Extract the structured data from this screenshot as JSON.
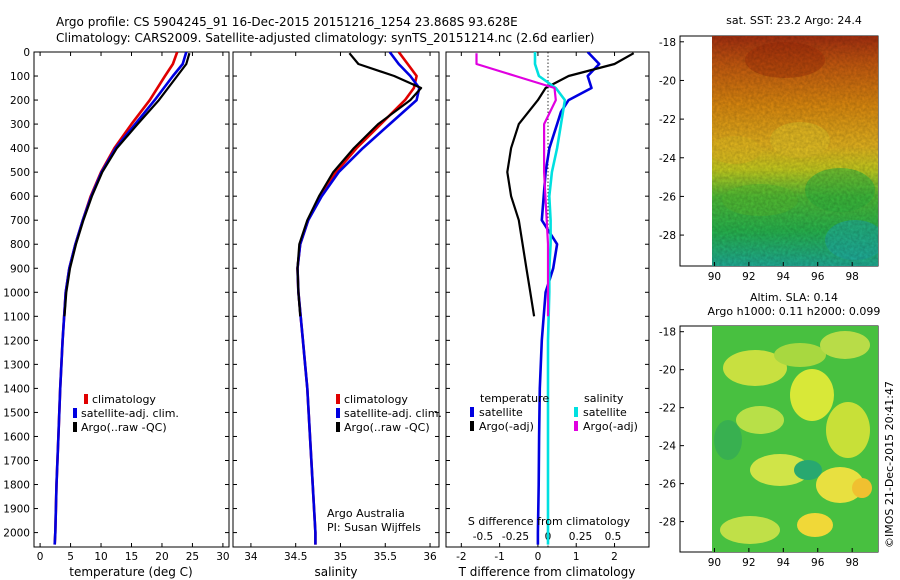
{
  "header": {
    "line1": "Argo profile: CS 5904245_91 16-Dec-2015 20151216_1254 23.868S 93.628E",
    "line2": "Climatology: CARS2009. Satellite-adjusted climatology: synTS_20151214.nc (2.6d earlier)"
  },
  "depth_axis": {
    "ticks": [
      "0",
      "100",
      "200",
      "300",
      "400",
      "500",
      "600",
      "700",
      "800",
      "900",
      "1000",
      "1100",
      "1200",
      "1300",
      "1400",
      "1500",
      "1600",
      "1700",
      "1800",
      "1900",
      "2000"
    ]
  },
  "colors": {
    "climatology": "#e00000",
    "satellite": "#0000e0",
    "argo": "#000000",
    "satellite_salinity": "#00e0e0",
    "argo_salinity": "#e000e0",
    "background": "#ffffff",
    "frame": "#000000"
  },
  "panels": {
    "temperature": {
      "xlabel": "temperature (deg C)",
      "xticks": [
        "0",
        "5",
        "10",
        "15",
        "20",
        "25",
        "30"
      ],
      "legend": [
        "climatology",
        "satellite-adj. clim.",
        "Argo(..raw -QC)"
      ]
    },
    "salinity": {
      "xlabel": "salinity",
      "xticks": [
        "34",
        "34.5",
        "35",
        "35.5",
        "36"
      ],
      "legend": [
        "climatology",
        "satellite-adj. clim.",
        "Argo(..raw -QC)"
      ],
      "credit1": "Argo Australia",
      "credit2": "PI: Susan Wijffels"
    },
    "difference": {
      "xlabel_bottom": "T difference from climatology",
      "xlabel_top": "S difference from climatology",
      "xticks_bottom": [
        "-2",
        "-1",
        "0",
        "1",
        "2"
      ],
      "xticks_top": [
        "-0.5",
        "-0.25",
        "0",
        "0.25",
        "0.5"
      ],
      "legend_t_title": "temperature",
      "legend_s_title": "salinity",
      "legend_t": [
        "satellite",
        "Argo(-adj)"
      ],
      "legend_s": [
        "satellite",
        "Argo(-adj)"
      ]
    }
  },
  "maps": {
    "sst": {
      "title": "sat. SST: 23.2 Argo: 24.4",
      "yticks": [
        "-18",
        "-20",
        "-22",
        "-24",
        "-26",
        "-28"
      ],
      "xticks": [
        "90",
        "92",
        "94",
        "96",
        "98"
      ]
    },
    "sla": {
      "title1": "Altim. SLA: 0.14",
      "title2": "Argo h1000: 0.11 h2000: 0.099",
      "yticks": [
        "-18",
        "-20",
        "-22",
        "-24",
        "-26",
        "-28"
      ],
      "xticks": [
        "90",
        "92",
        "94",
        "96",
        "98"
      ]
    },
    "stamp": "©IMOS 21-Dec-2015 20:41:47"
  },
  "chart_data": [
    {
      "type": "line",
      "xlabel": "temperature (deg C)",
      "ylabel": "",
      "xlim": [
        -1,
        31
      ],
      "ylim": [
        2060,
        0
      ],
      "series": [
        {
          "name": "climatology",
          "depth": [
            0,
            50,
            100,
            200,
            300,
            400,
            500,
            600,
            700,
            800,
            900,
            1000,
            1200,
            1400,
            1600,
            1800,
            2000,
            2050
          ],
          "values": [
            22.5,
            21.8,
            20.5,
            18.0,
            15.0,
            12.2,
            10.0,
            8.3,
            7.0,
            5.8,
            4.8,
            4.2,
            3.7,
            3.3,
            3.0,
            2.7,
            2.5,
            2.4
          ]
        },
        {
          "name": "satellite-adj. clim.",
          "depth": [
            0,
            50,
            100,
            200,
            300,
            400,
            500,
            600,
            700,
            800,
            900,
            1000,
            1200,
            1400,
            1600,
            1800,
            2000,
            2050
          ],
          "values": [
            24.0,
            23.4,
            21.8,
            18.8,
            15.6,
            12.4,
            10.1,
            8.4,
            7.0,
            5.8,
            4.8,
            4.2,
            3.7,
            3.3,
            3.0,
            2.7,
            2.5,
            2.4
          ]
        },
        {
          "name": "Argo(..raw -QC)",
          "depth": [
            5,
            50,
            100,
            200,
            300,
            400,
            500,
            600,
            700,
            800,
            900,
            1000,
            1100
          ],
          "values": [
            24.5,
            24.0,
            22.5,
            19.5,
            16.0,
            12.6,
            10.2,
            8.5,
            7.1,
            5.9,
            4.9,
            4.3,
            4.0
          ]
        }
      ]
    },
    {
      "type": "line",
      "xlabel": "salinity",
      "ylabel": "",
      "xlim": [
        33.8,
        36.1
      ],
      "ylim": [
        2060,
        0
      ],
      "series": [
        {
          "name": "climatology",
          "depth": [
            0,
            50,
            100,
            150,
            200,
            300,
            400,
            500,
            600,
            700,
            800,
            900,
            1000,
            1200,
            1400,
            1600,
            1800,
            2000,
            2050
          ],
          "values": [
            35.65,
            35.75,
            35.85,
            35.82,
            35.72,
            35.45,
            35.18,
            34.95,
            34.78,
            34.64,
            34.55,
            34.52,
            34.53,
            34.58,
            34.63,
            34.66,
            34.69,
            34.72,
            34.72
          ]
        },
        {
          "name": "satellite-adj. clim.",
          "depth": [
            0,
            50,
            100,
            150,
            200,
            300,
            400,
            500,
            600,
            700,
            800,
            900,
            1000,
            1200,
            1400,
            1600,
            1800,
            2000,
            2050
          ],
          "values": [
            35.55,
            35.65,
            35.78,
            35.88,
            35.85,
            35.55,
            35.25,
            34.98,
            34.79,
            34.64,
            34.55,
            34.52,
            34.53,
            34.58,
            34.63,
            34.66,
            34.69,
            34.72,
            34.72
          ]
        },
        {
          "name": "Argo(..raw -QC)",
          "depth": [
            5,
            50,
            100,
            150,
            200,
            300,
            400,
            500,
            600,
            700,
            800,
            900,
            1000,
            1100
          ],
          "values": [
            35.1,
            35.2,
            35.6,
            35.9,
            35.78,
            35.42,
            35.15,
            34.92,
            34.76,
            34.63,
            34.54,
            34.52,
            34.53,
            34.55
          ]
        }
      ]
    },
    {
      "type": "line",
      "xlabel": "T difference from climatology",
      "ylabel": "",
      "xlim": [
        -2.4,
        2.9
      ],
      "ylim": [
        2060,
        0
      ],
      "series": [
        {
          "name": "temperature satellite",
          "depth": [
            0,
            50,
            100,
            150,
            200,
            250,
            300,
            400,
            500,
            600,
            700,
            800,
            900,
            1000,
            1200,
            1400,
            1600,
            1800,
            2000,
            2050
          ],
          "values": [
            1.3,
            1.6,
            1.3,
            1.4,
            0.8,
            0.6,
            0.5,
            0.3,
            0.2,
            0.15,
            0.1,
            0.5,
            0.4,
            0.2,
            0.1,
            0.05,
            0.03,
            0.02,
            0.0,
            0.0
          ]
        },
        {
          "name": "temperature Argo(-adj)",
          "depth": [
            5,
            50,
            100,
            150,
            200,
            300,
            400,
            500,
            600,
            700,
            800,
            900,
            1000,
            1100
          ],
          "values": [
            2.5,
            2.0,
            0.8,
            0.2,
            0.0,
            -0.5,
            -0.7,
            -0.8,
            -0.7,
            -0.5,
            -0.4,
            -0.3,
            -0.2,
            -0.1
          ]
        },
        {
          "name": "salinity satellite",
          "depth": [
            0,
            50,
            100,
            150,
            200,
            300,
            400,
            500,
            600,
            700,
            800,
            900,
            1000,
            1200,
            1400,
            1600,
            1800,
            2000,
            2050
          ],
          "values": [
            -0.1,
            -0.1,
            -0.07,
            0.06,
            0.13,
            0.1,
            0.07,
            0.03,
            0.01,
            0.02,
            0.02,
            0.01,
            0.01,
            0.0,
            0.0,
            0.0,
            0.0,
            0.0,
            0.0
          ]
        },
        {
          "name": "salinity Argo(-adj)",
          "depth": [
            5,
            50,
            100,
            150,
            200,
            300,
            400,
            500,
            600,
            700,
            800,
            900,
            1000,
            1100
          ],
          "values": [
            -0.55,
            -0.55,
            -0.25,
            0.05,
            0.06,
            -0.03,
            -0.03,
            -0.03,
            -0.02,
            -0.01,
            0.0,
            0.0,
            0.0,
            0.0
          ]
        }
      ]
    }
  ]
}
